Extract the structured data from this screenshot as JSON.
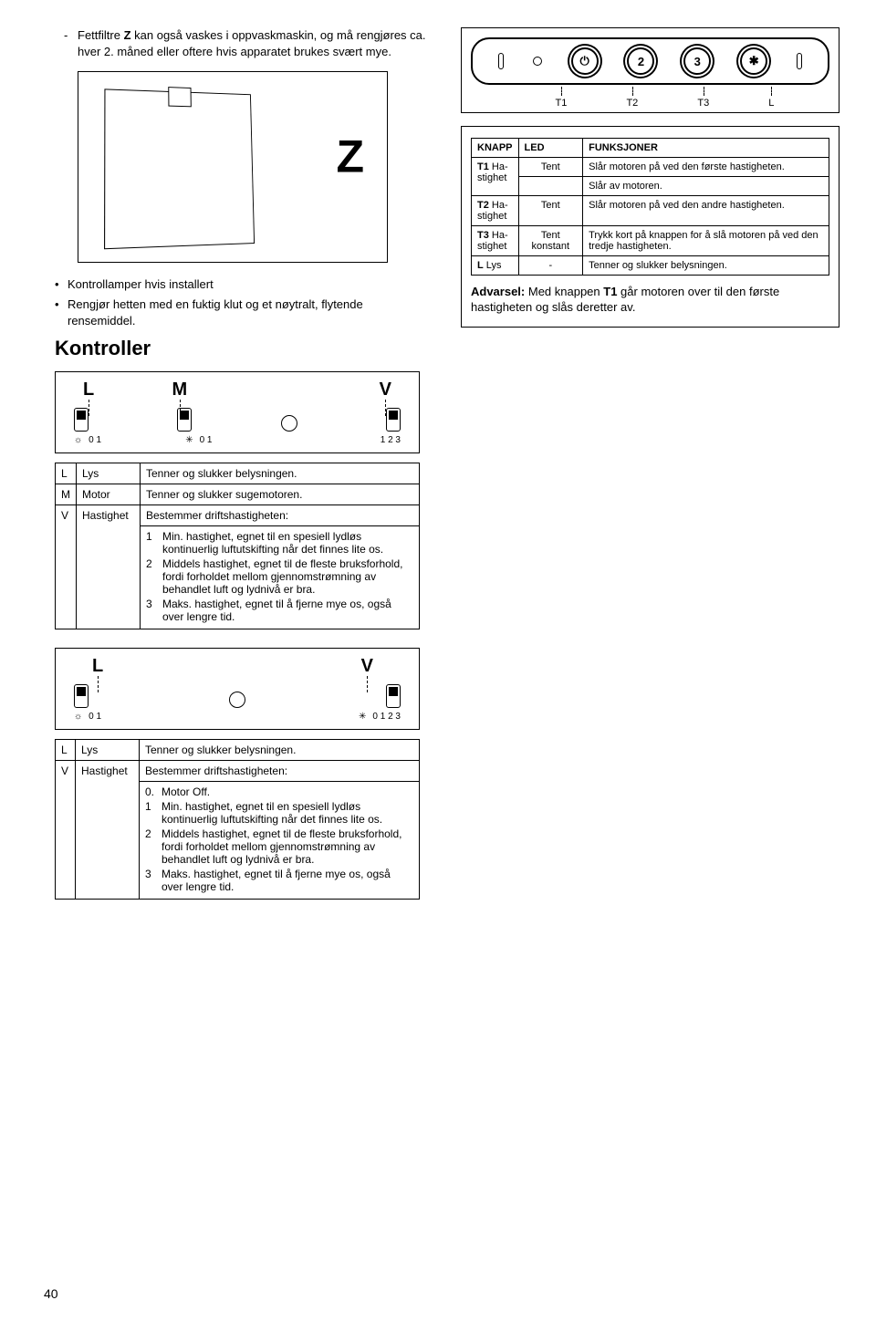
{
  "top_bullet": "Fettfiltre <b>Z</b> kan også vaskes i oppvaskmaskin, og må rengjøres ca. hver 2. måned eller oftere hvis apparatet brukes svært mye.",
  "z_label": "Z",
  "mid_bullets": [
    "Kontrollamper hvis installert",
    "Rengjør hetten med en fuktig klut og et nøytralt, flytende rensemiddel."
  ],
  "kontroller_heading": "Kontroller",
  "panel_labels": [
    "T1",
    "T2",
    "T3",
    "L"
  ],
  "panel_btn_texts": [
    "⏻",
    "2",
    "3",
    "✱"
  ],
  "func_headers": [
    "KNAPP",
    "LED",
    "FUNKSJONER"
  ],
  "func_rows": [
    {
      "k": "T1 Ha-\nstighet",
      "led": "Tent",
      "f": "Slår motoren på ved den første hastigheten."
    },
    {
      "k": "",
      "led": "",
      "f": "Slår av motoren."
    },
    {
      "k": "T2 Ha-\nstighet",
      "led": "Tent",
      "f": "Slår motoren på ved den andre hastigheten."
    },
    {
      "k": "T3 Ha-\nstighet",
      "led": "Tent konstant",
      "f": "Trykk kort på knappen for å slå motoren på ved den tredje hastigheten."
    },
    {
      "k": "L Lys",
      "led": "-",
      "f": "Tenner og slukker belysningen."
    }
  ],
  "advarsel": "<b>Advarsel:</b> Med knappen <b>T1</b> går motoren over til den første hastigheten og slås deretter av.",
  "lmv_labels": [
    "L",
    "M",
    "V"
  ],
  "lmv_scale_l": "0  1",
  "lmv_scale_m": "0  1",
  "lmv_scale_v": "1  2  3",
  "lmv_table": [
    {
      "k": "L",
      "n": "Lys",
      "d": "Tenner og slukker belysningen."
    },
    {
      "k": "M",
      "n": "Motor",
      "d": "Tenner og slukker sugemotoren."
    },
    {
      "k": "V",
      "n": "Hastighet",
      "d": "Bestemmer driftshastigheten:"
    }
  ],
  "speed_list_a": [
    {
      "n": "1",
      "t": "Min. hastighet, egnet til en spesiell lydløs kontinuerlig luftutskifting når det finnes lite os."
    },
    {
      "n": "2",
      "t": "Middels hastighet, egnet til de fleste bruksforhold, fordi forholdet mellom gjennomstrømning av behandlet luft og lydnivå er bra."
    },
    {
      "n": "3",
      "t": "Maks. hastighet, egnet til å fjerne mye os, også over lengre tid."
    }
  ],
  "lv_labels": [
    "L",
    "V"
  ],
  "lv_scale_l": "0  1",
  "lv_scale_v": "0  1  2  3",
  "lv_table": [
    {
      "k": "L",
      "n": "Lys",
      "d": "Tenner og slukker belysningen."
    },
    {
      "k": "V",
      "n": "Hastighet",
      "d": "Bestemmer driftshastigheten:"
    }
  ],
  "speed_list_b": [
    {
      "n": "0.",
      "t": "Motor Off."
    },
    {
      "n": "1",
      "t": "Min. hastighet, egnet til en spesiell lydløs kontinuerlig luftutskifting når det finnes lite os."
    },
    {
      "n": "2",
      "t": "Middels hastighet, egnet til de fleste bruksforhold, fordi forholdet mellom gjennomstrømning av behandlet luft og lydnivå er bra."
    },
    {
      "n": "3",
      "t": "Maks. hastighet, egnet til å fjerne mye os, også over lengre tid."
    }
  ],
  "page_number": "40"
}
